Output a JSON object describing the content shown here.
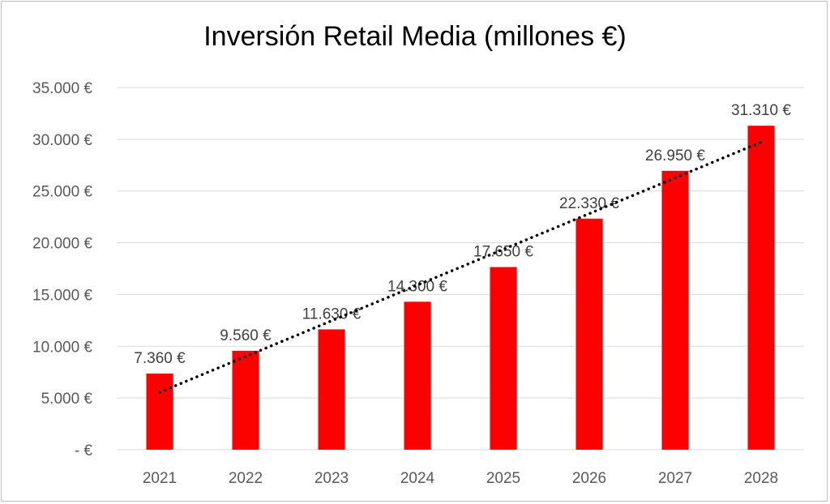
{
  "chart_data": {
    "type": "bar",
    "title": "Inversión Retail Media (millones €)",
    "categories": [
      "2021",
      "2022",
      "2023",
      "2024",
      "2025",
      "2026",
      "2027",
      "2028"
    ],
    "values": [
      7360,
      9560,
      11630,
      14300,
      17650,
      22330,
      26950,
      31310
    ],
    "value_labels": [
      "7.360 €",
      "9.560 €",
      "11.630 €",
      "14.300 €",
      "17.650 €",
      "22.330 €",
      "26.950 €",
      "31.310 €"
    ],
    "yticks": [
      0,
      5000,
      10000,
      15000,
      20000,
      25000,
      30000,
      35000
    ],
    "ytick_labels": [
      "-  €",
      "5.000 €",
      "10.000 €",
      "15.000 €",
      "20.000 €",
      "25.000 €",
      "30.000 €",
      "35.000 €"
    ],
    "ylim": [
      0,
      35000
    ],
    "xlabel": "",
    "ylabel": "",
    "grid": true,
    "trendline": "linear",
    "colors": {
      "bar": "#ff0000",
      "grid": "#d9d9d9",
      "trend": "#000000"
    }
  }
}
